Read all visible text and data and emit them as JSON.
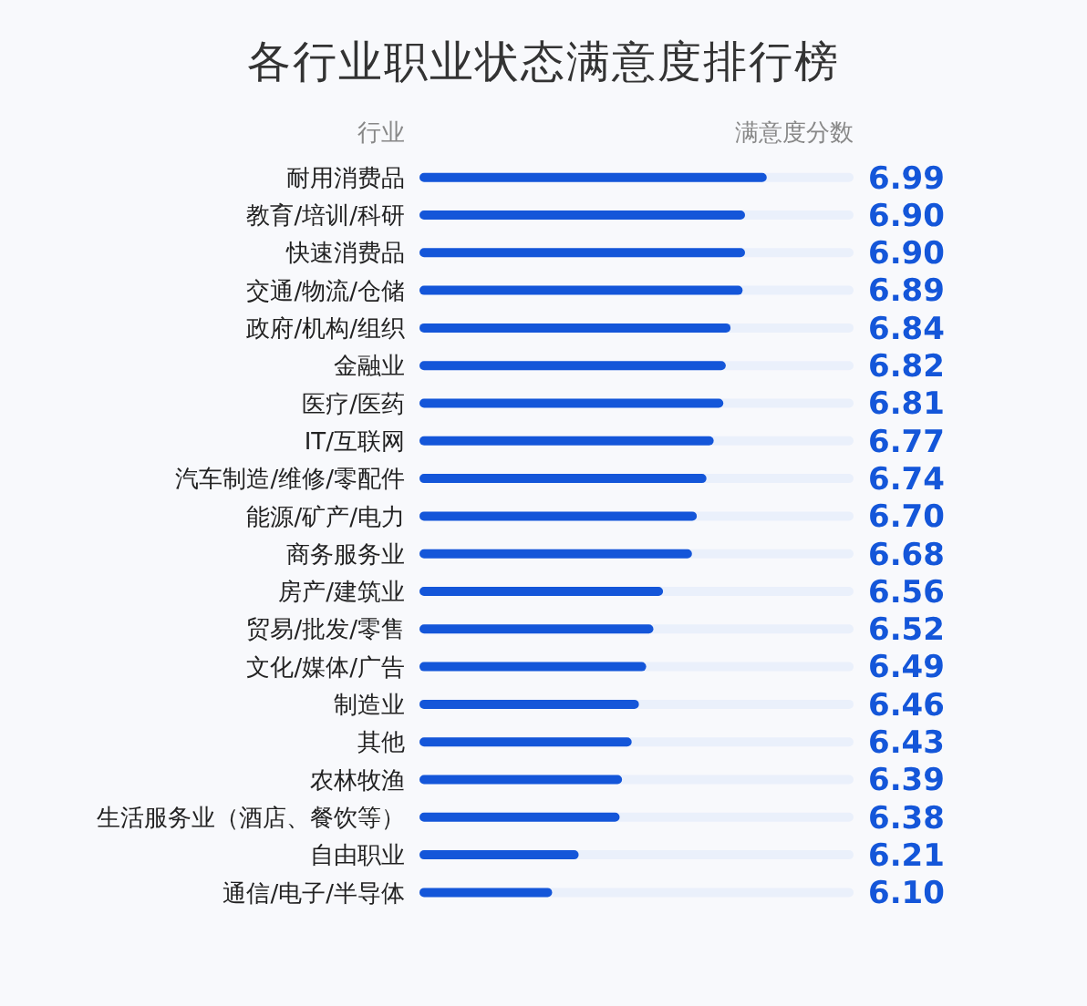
{
  "chart_data": {
    "type": "bar",
    "orientation": "horizontal",
    "title": "各行业职业状态满意度排行榜",
    "ylabel": "行业",
    "xlabel": "满意度分数",
    "categories": [
      "耐用消费品",
      "教育/培训/科研",
      "快速消费品",
      "交通/物流/仓储",
      "政府/机构/组织",
      "金融业",
      "医疗/医药",
      "IT/互联网",
      "汽车制造/维修/零配件",
      "能源/矿产/电力",
      "商务服务业",
      "房产/建筑业",
      "贸易/批发/零售",
      "文化/媒体/广告",
      "制造业",
      "其他",
      "农林牧渔",
      "生活服务业（酒店、餐饮等）",
      "自由职业",
      "通信/电子/半导体"
    ],
    "values": [
      6.99,
      6.9,
      6.9,
      6.89,
      6.84,
      6.82,
      6.81,
      6.77,
      6.74,
      6.7,
      6.68,
      6.56,
      6.52,
      6.49,
      6.46,
      6.43,
      6.39,
      6.38,
      6.21,
      6.1
    ],
    "value_labels": [
      "6.99",
      "6.90",
      "6.90",
      "6.89",
      "6.84",
      "6.82",
      "6.81",
      "6.77",
      "6.74",
      "6.70",
      "6.68",
      "6.56",
      "6.52",
      "6.49",
      "6.46",
      "6.43",
      "6.39",
      "6.38",
      "6.21",
      "6.10"
    ],
    "color": "#1456d9",
    "xlim": [
      5.55,
      7.35
    ],
    "tick_labels": "y"
  }
}
